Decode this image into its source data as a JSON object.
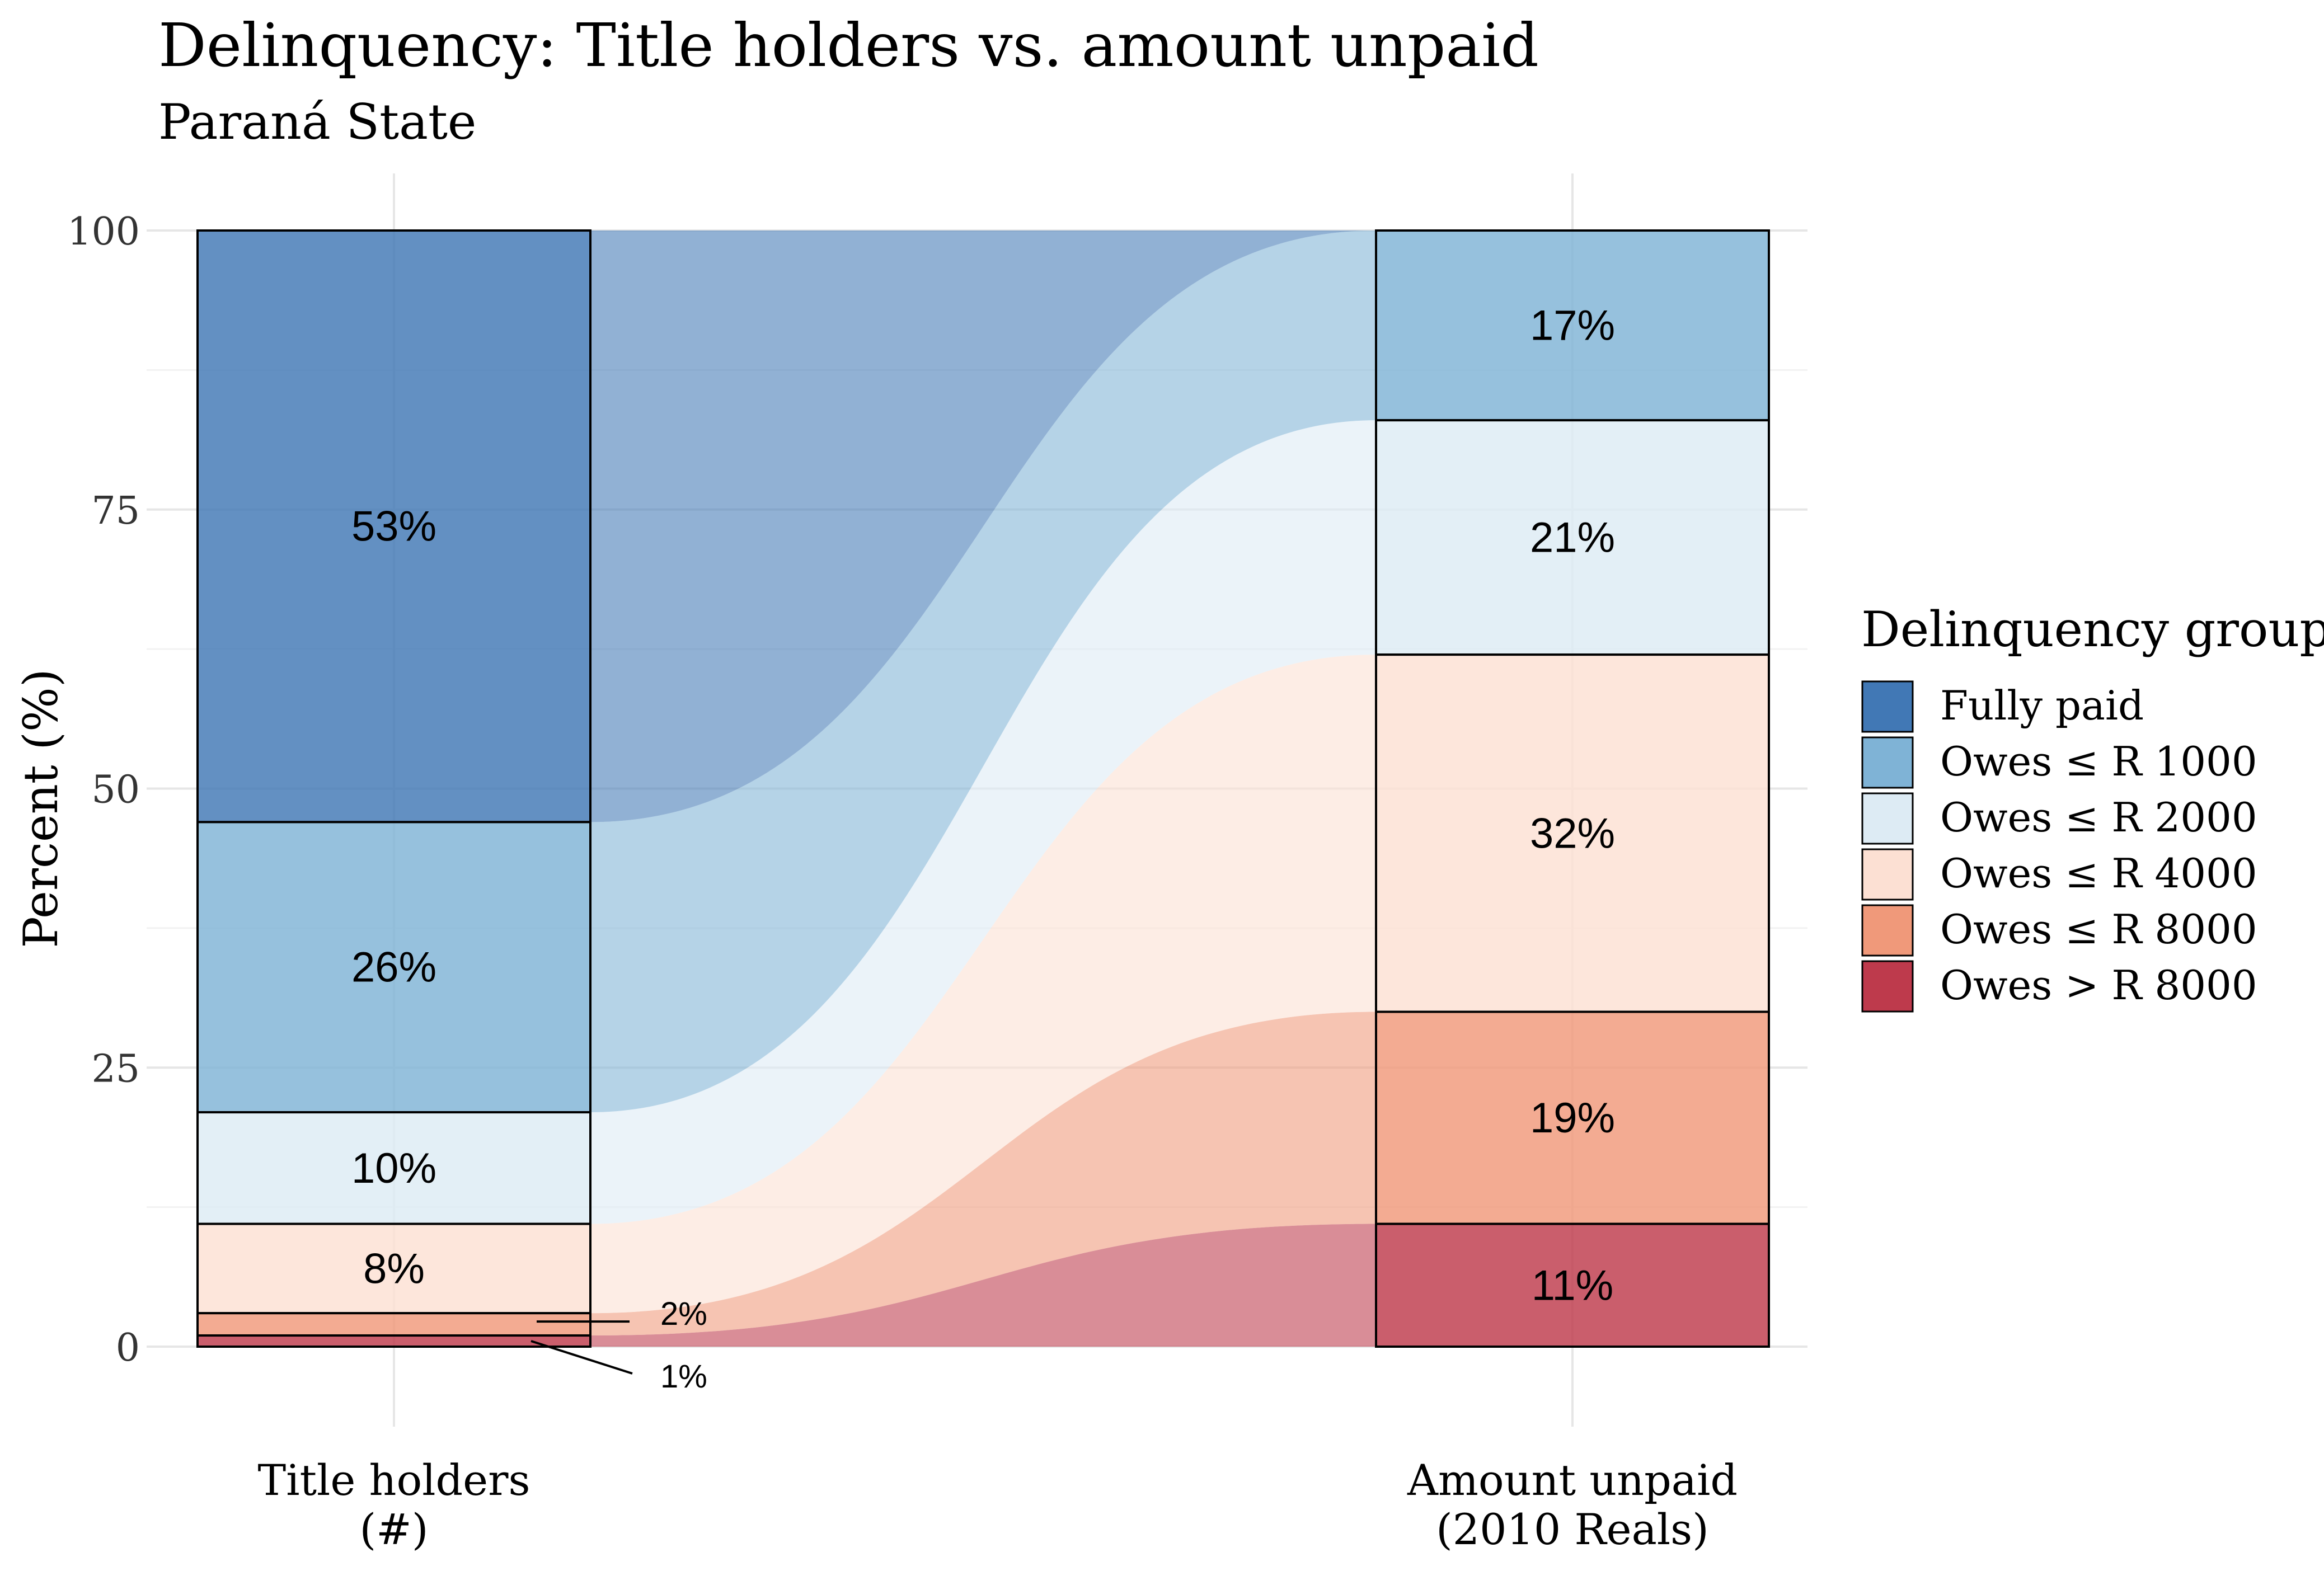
{
  "chart_data": {
    "type": "alluvial",
    "title": "Delinquency: Title holders vs. amount unpaid",
    "subtitle": "Paraná State",
    "ylabel": "Percent (%)",
    "xlabel": "",
    "ylim": [
      0,
      100
    ],
    "y_ticks": [
      0,
      25,
      50,
      75,
      100
    ],
    "y_tick_labels": [
      "0",
      "25",
      "50",
      "75",
      "100"
    ],
    "grid": true,
    "categories": [
      {
        "label_line1": "Title holders",
        "label_line2": "(#)"
      },
      {
        "label_line1": "Amount unpaid",
        "label_line2": "(2010 Reals)"
      }
    ],
    "legend": {
      "title": "Delinquency group",
      "placement": "right"
    },
    "series": [
      {
        "name": "Fully paid",
        "color": "#4178B5",
        "values": [
          53,
          0
        ],
        "labels": [
          "53%",
          null
        ]
      },
      {
        "name": "Owes ≤ R 1000",
        "color": "#7FB3D6",
        "values": [
          26,
          17
        ],
        "labels": [
          "26%",
          "17%"
        ]
      },
      {
        "name": "Owes ≤ R 2000",
        "color": "#DDEBF4",
        "values": [
          10,
          21
        ],
        "labels": [
          "10%",
          "21%"
        ]
      },
      {
        "name": "Owes ≤ R 4000",
        "color": "#FCE0D3",
        "values": [
          8,
          32
        ],
        "labels": [
          "8%",
          "32%"
        ]
      },
      {
        "name": "Owes ≤ R 8000",
        "color": "#F0997A",
        "values": [
          2,
          19
        ],
        "labels": [
          "2%",
          "19%"
        ]
      },
      {
        "name": "Owes > R 8000",
        "color": "#BE3A4C",
        "values": [
          1,
          11
        ],
        "labels": [
          "1%",
          "11%"
        ]
      }
    ]
  }
}
